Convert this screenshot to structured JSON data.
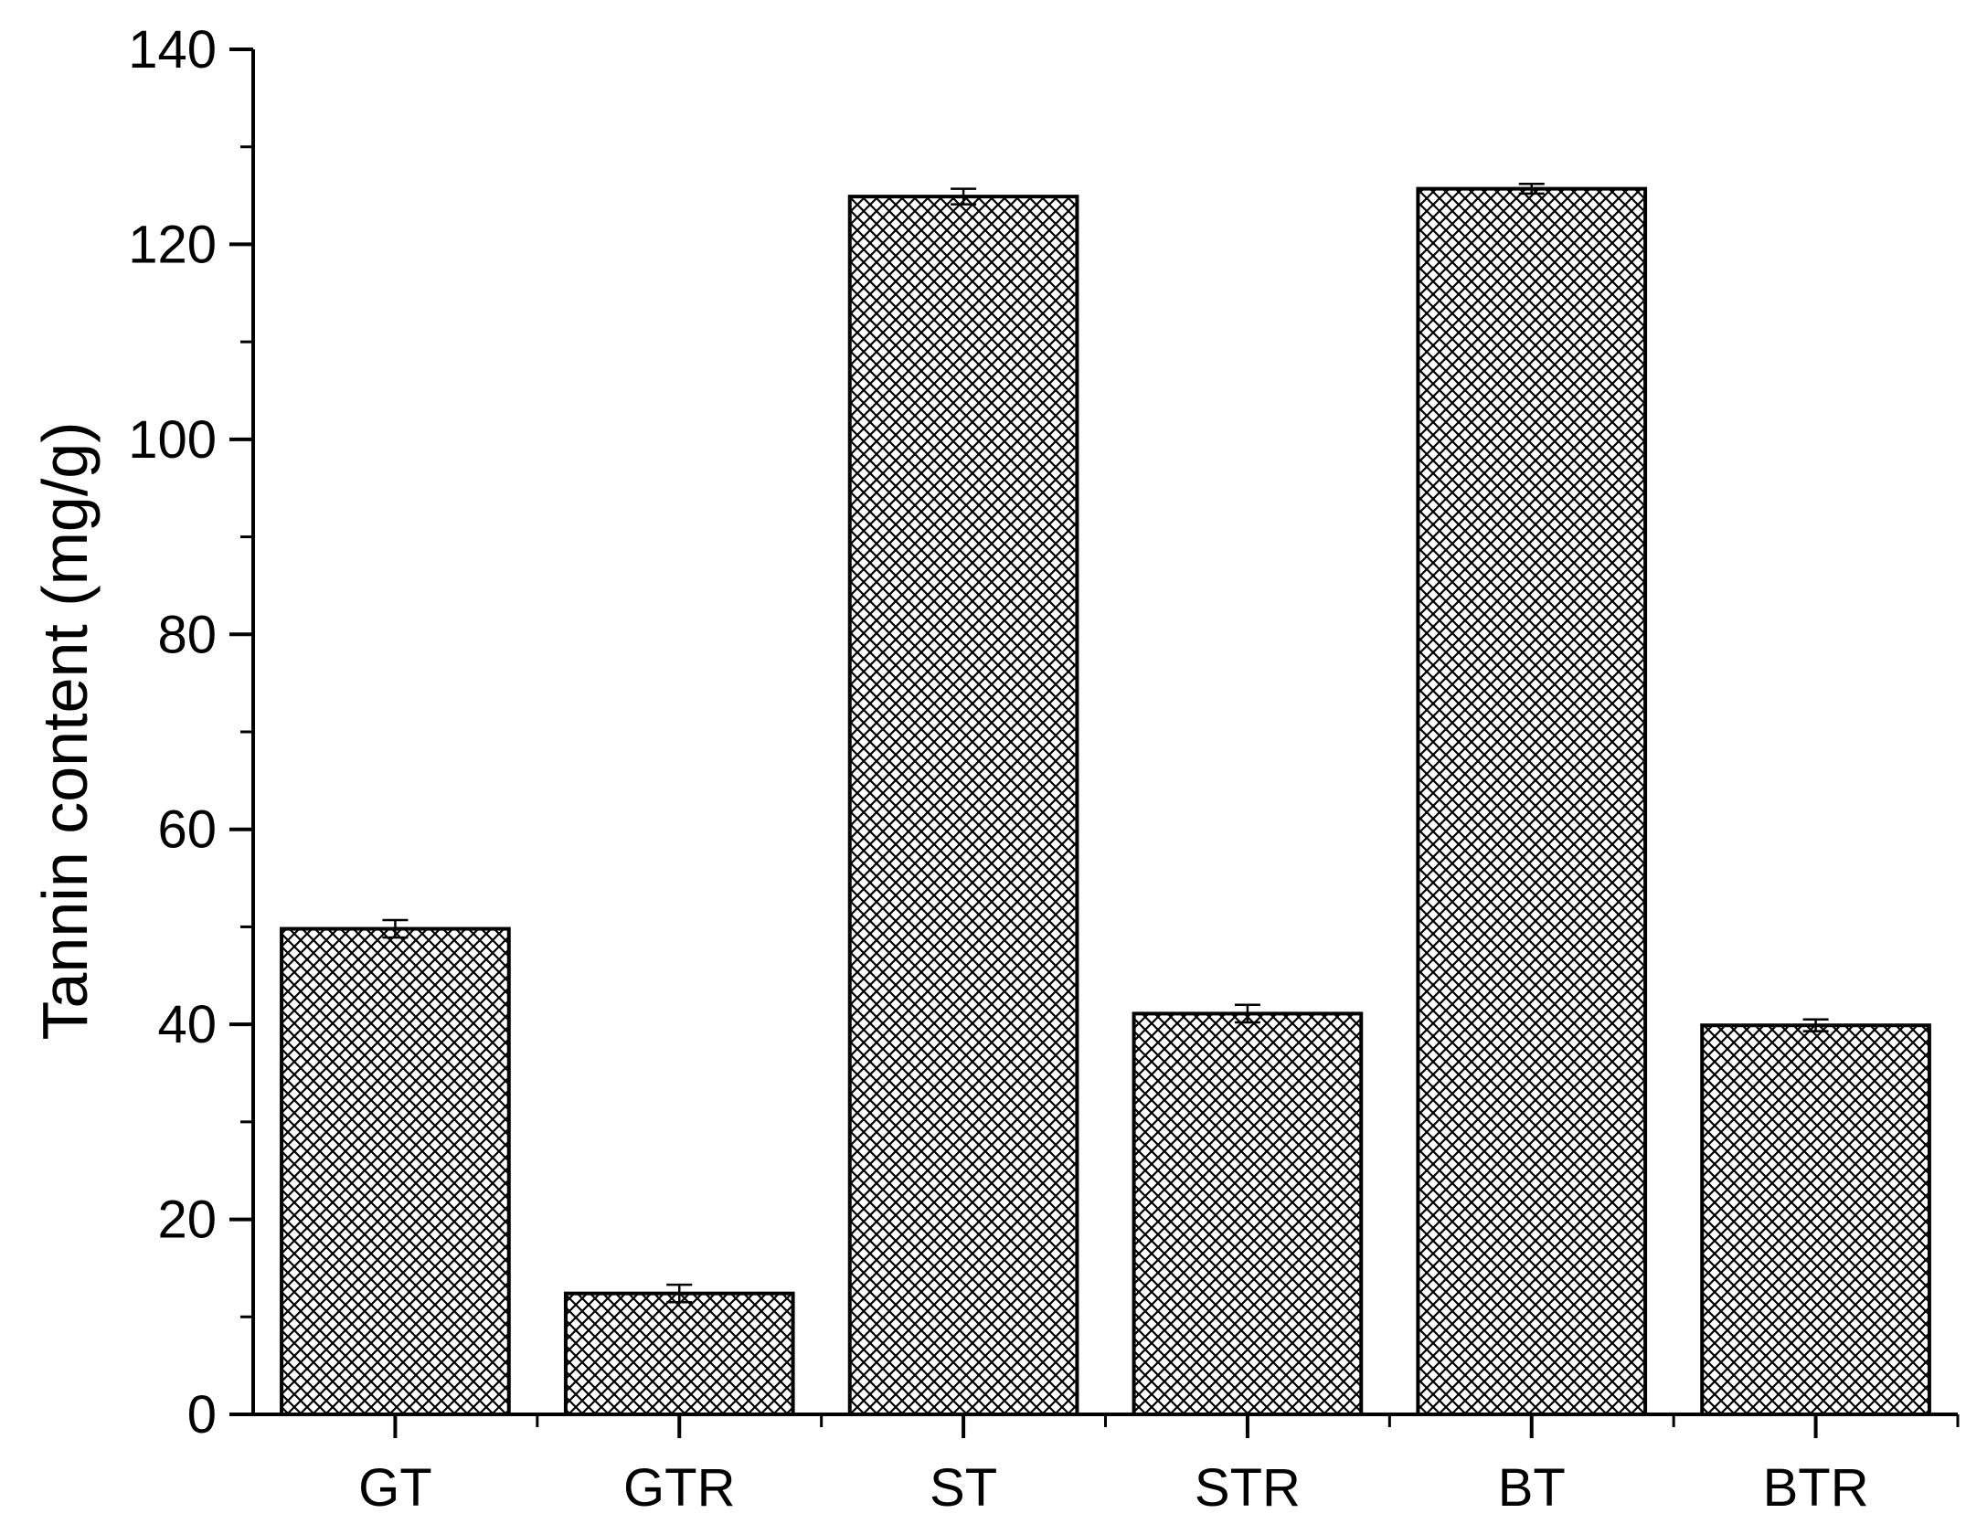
{
  "chart_data": {
    "type": "bar",
    "title": "",
    "xlabel": "",
    "ylabel": "Tannin content (mg/g)",
    "categories": [
      "GT",
      "GTR",
      "ST",
      "STR",
      "BT",
      "BTR"
    ],
    "values": [
      49.8,
      12.4,
      124.9,
      41.1,
      125.7,
      39.9
    ],
    "errors": [
      0.9,
      0.9,
      0.8,
      0.9,
      0.5,
      0.6
    ],
    "ylim": [
      0,
      140
    ],
    "yticks": [
      0,
      20,
      40,
      60,
      80,
      100,
      120,
      140
    ],
    "y_minor_step": 10,
    "pattern": "crosshatch",
    "bar_color": "#000000",
    "grid": false,
    "legend": "none"
  }
}
